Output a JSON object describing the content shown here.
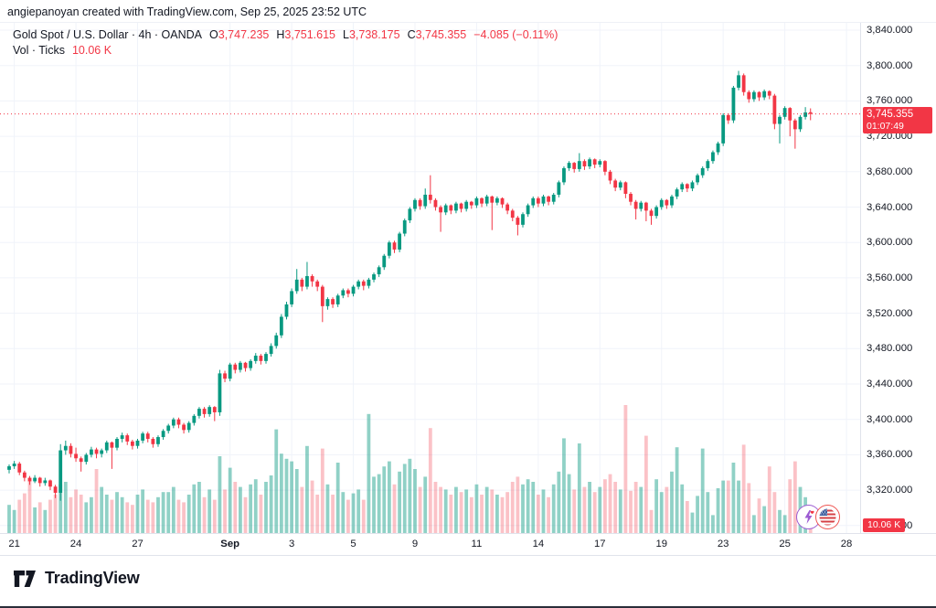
{
  "attribution": "angiepanoyan created with TradingView.com, Sep 25, 2025 23:52 UTC",
  "legend": {
    "title": "Gold Spot / U.S. Dollar · 4h · OANDA",
    "open_label": "O",
    "open": "3,747.235",
    "high_label": "H",
    "high": "3,751.615",
    "low_label": "L",
    "low": "3,738.175",
    "close_label": "C",
    "close": "3,745.355",
    "change": "−4.085 (−0.11%)",
    "volume_label": "Vol · Ticks",
    "volume_value": "10.06 K"
  },
  "price_badge": {
    "price": "3,745.355",
    "countdown": "01:07:49"
  },
  "volume_badge": "10.06 K",
  "footer": {
    "brand": "TradingView"
  },
  "icons": {
    "left": "lightning-event-icon",
    "right": "us-flag-event-icon"
  },
  "colors": {
    "up": "#089981",
    "down": "#f23645",
    "vol_up": "rgba(8,153,129,0.45)",
    "vol_down": "rgba(242,54,69,0.30)",
    "grid": "#f0f3fa",
    "axis_border": "#e0e3eb",
    "text": "#131722",
    "badge_bg": "#f23645",
    "last_price_line": "#f23645"
  },
  "chart_data": {
    "type": "candlestick+volume",
    "symbol": "Gold Spot / U.S. Dollar (XAU/USD)",
    "exchange": "OANDA",
    "interval": "4h",
    "last_close": 3745.355,
    "y_ticks": [
      {
        "value": 3840,
        "text": "3,840.000"
      },
      {
        "value": 3800,
        "text": "3,800.000"
      },
      {
        "value": 3760,
        "text": "3,760.000"
      },
      {
        "value": 3720,
        "text": "3,720.000"
      },
      {
        "value": 3680,
        "text": "3,680.000"
      },
      {
        "value": 3640,
        "text": "3,640.000"
      },
      {
        "value": 3600,
        "text": "3,600.000"
      },
      {
        "value": 3560,
        "text": "3,560.000"
      },
      {
        "value": 3520,
        "text": "3,520.000"
      },
      {
        "value": 3480,
        "text": "3,480.000"
      },
      {
        "value": 3440,
        "text": "3,440.000"
      },
      {
        "value": 3400,
        "text": "3,400.000"
      },
      {
        "value": 3360,
        "text": "3,360.000"
      },
      {
        "value": 3320,
        "text": "3,320.000"
      },
      {
        "value": 3280,
        "text": "3,280.000"
      }
    ],
    "x_ticks": [
      {
        "label": "21",
        "i": 1
      },
      {
        "label": "24",
        "i": 13
      },
      {
        "label": "27",
        "i": 25
      },
      {
        "label": "Sep",
        "i": 43,
        "bold": true
      },
      {
        "label": "3",
        "i": 55
      },
      {
        "label": "5",
        "i": 67
      },
      {
        "label": "9",
        "i": 79
      },
      {
        "label": "11",
        "i": 91
      },
      {
        "label": "14",
        "i": 103
      },
      {
        "label": "17",
        "i": 115
      },
      {
        "label": "19",
        "i": 127
      },
      {
        "label": "23",
        "i": 139
      },
      {
        "label": "25",
        "i": 151
      },
      {
        "label": "28",
        "i": 163
      }
    ],
    "candles_format": [
      "open",
      "high",
      "low",
      "close",
      "volume_k"
    ],
    "candles": [
      [
        3343,
        3349,
        3339,
        3347,
        22
      ],
      [
        3347,
        3353,
        3344,
        3350,
        18
      ],
      [
        3350,
        3352,
        3337,
        3340,
        26
      ],
      [
        3340,
        3342,
        3330,
        3334,
        31
      ],
      [
        3334,
        3336,
        3326,
        3330,
        43
      ],
      [
        3330,
        3337,
        3328,
        3334,
        20
      ],
      [
        3334,
        3335,
        3324,
        3328,
        24
      ],
      [
        3328,
        3334,
        3325,
        3331,
        18
      ],
      [
        3331,
        3332,
        3320,
        3324,
        26
      ],
      [
        3324,
        3326,
        3311,
        3317,
        30
      ],
      [
        3317,
        3372,
        3308,
        3365,
        38
      ],
      [
        3365,
        3376,
        3360,
        3370,
        40
      ],
      [
        3370,
        3373,
        3357,
        3361,
        28
      ],
      [
        3361,
        3368,
        3352,
        3356,
        34
      ],
      [
        3356,
        3358,
        3341,
        3352,
        30
      ],
      [
        3352,
        3362,
        3349,
        3360,
        24
      ],
      [
        3360,
        3369,
        3357,
        3366,
        28
      ],
      [
        3366,
        3368,
        3356,
        3361,
        50
      ],
      [
        3361,
        3367,
        3357,
        3365,
        36
      ],
      [
        3365,
        3376,
        3362,
        3374,
        30
      ],
      [
        3374,
        3375,
        3344,
        3368,
        26
      ],
      [
        3368,
        3380,
        3365,
        3378,
        32
      ],
      [
        3378,
        3385,
        3374,
        3382,
        28
      ],
      [
        3382,
        3384,
        3371,
        3375,
        24
      ],
      [
        3375,
        3377,
        3366,
        3370,
        22
      ],
      [
        3370,
        3378,
        3367,
        3376,
        30
      ],
      [
        3376,
        3386,
        3373,
        3384,
        34
      ],
      [
        3384,
        3386,
        3374,
        3378,
        26
      ],
      [
        3378,
        3380,
        3368,
        3372,
        24
      ],
      [
        3372,
        3382,
        3369,
        3380,
        28
      ],
      [
        3380,
        3389,
        3377,
        3387,
        32
      ],
      [
        3387,
        3395,
        3384,
        3393,
        32
      ],
      [
        3393,
        3402,
        3390,
        3400,
        36
      ],
      [
        3400,
        3402,
        3390,
        3394,
        26
      ],
      [
        3394,
        3396,
        3384,
        3388,
        24
      ],
      [
        3388,
        3398,
        3385,
        3396,
        30
      ],
      [
        3396,
        3406,
        3393,
        3404,
        38
      ],
      [
        3404,
        3414,
        3401,
        3412,
        40
      ],
      [
        3412,
        3414,
        3402,
        3406,
        28
      ],
      [
        3406,
        3416,
        3403,
        3414,
        34
      ],
      [
        3414,
        3415,
        3398,
        3408,
        26
      ],
      [
        3408,
        3456,
        3404,
        3452,
        60
      ],
      [
        3452,
        3455,
        3442,
        3446,
        34
      ],
      [
        3446,
        3464,
        3443,
        3462,
        51
      ],
      [
        3462,
        3464,
        3452,
        3456,
        40
      ],
      [
        3456,
        3466,
        3453,
        3464,
        36
      ],
      [
        3464,
        3465,
        3454,
        3458,
        28
      ],
      [
        3458,
        3468,
        3455,
        3466,
        38
      ],
      [
        3466,
        3475,
        3463,
        3472,
        42
      ],
      [
        3472,
        3474,
        3462,
        3466,
        30
      ],
      [
        3466,
        3476,
        3463,
        3474,
        40
      ],
      [
        3474,
        3486,
        3471,
        3483,
        45
      ],
      [
        3483,
        3498,
        3480,
        3495,
        81
      ],
      [
        3495,
        3519,
        3492,
        3516,
        62
      ],
      [
        3516,
        3533,
        3513,
        3530,
        58
      ],
      [
        3530,
        3548,
        3527,
        3545,
        56
      ],
      [
        3545,
        3570,
        3542,
        3558,
        50
      ],
      [
        3558,
        3560,
        3545,
        3550,
        36
      ],
      [
        3550,
        3578,
        3547,
        3562,
        68
      ],
      [
        3562,
        3564,
        3550,
        3556,
        41
      ],
      [
        3556,
        3558,
        3545,
        3550,
        30
      ],
      [
        3550,
        3552,
        3510,
        3528,
        66
      ],
      [
        3528,
        3538,
        3524,
        3536,
        38
      ],
      [
        3536,
        3538,
        3526,
        3530,
        30
      ],
      [
        3530,
        3542,
        3527,
        3540,
        55
      ],
      [
        3540,
        3548,
        3537,
        3546,
        32
      ],
      [
        3546,
        3548,
        3538,
        3542,
        26
      ],
      [
        3542,
        3552,
        3539,
        3550,
        31
      ],
      [
        3550,
        3558,
        3547,
        3556,
        34
      ],
      [
        3556,
        3558,
        3546,
        3551,
        26
      ],
      [
        3551,
        3560,
        3548,
        3558,
        93
      ],
      [
        3558,
        3566,
        3555,
        3564,
        44
      ],
      [
        3564,
        3574,
        3561,
        3572,
        46
      ],
      [
        3572,
        3587,
        3569,
        3585,
        52
      ],
      [
        3585,
        3602,
        3582,
        3600,
        56
      ],
      [
        3600,
        3602,
        3588,
        3592,
        38
      ],
      [
        3592,
        3612,
        3589,
        3610,
        48
      ],
      [
        3610,
        3627,
        3607,
        3625,
        54
      ],
      [
        3625,
        3640,
        3622,
        3638,
        58
      ],
      [
        3638,
        3650,
        3635,
        3648,
        50
      ],
      [
        3648,
        3650,
        3637,
        3641,
        36
      ],
      [
        3641,
        3661,
        3638,
        3654,
        44
      ],
      [
        3654,
        3676,
        3644,
        3648,
        82
      ],
      [
        3648,
        3650,
        3636,
        3640,
        40
      ],
      [
        3640,
        3642,
        3612,
        3634,
        36
      ],
      [
        3634,
        3644,
        3631,
        3642,
        34
      ],
      [
        3642,
        3643,
        3632,
        3636,
        30
      ],
      [
        3636,
        3646,
        3633,
        3644,
        36
      ],
      [
        3644,
        3645,
        3634,
        3638,
        32
      ],
      [
        3638,
        3648,
        3635,
        3646,
        34
      ],
      [
        3646,
        3647,
        3638,
        3642,
        28
      ],
      [
        3642,
        3652,
        3639,
        3650,
        38
      ],
      [
        3650,
        3651,
        3640,
        3644,
        30
      ],
      [
        3644,
        3654,
        3641,
        3652,
        36
      ],
      [
        3652,
        3653,
        3614,
        3645,
        34
      ],
      [
        3645,
        3652,
        3642,
        3650,
        30
      ],
      [
        3650,
        3651,
        3639,
        3643,
        28
      ],
      [
        3643,
        3645,
        3632,
        3636,
        32
      ],
      [
        3636,
        3638,
        3624,
        3628,
        40
      ],
      [
        3628,
        3630,
        3608,
        3620,
        44
      ],
      [
        3620,
        3634,
        3617,
        3632,
        38
      ],
      [
        3632,
        3644,
        3629,
        3642,
        42
      ],
      [
        3642,
        3652,
        3639,
        3650,
        40
      ],
      [
        3650,
        3652,
        3640,
        3644,
        30
      ],
      [
        3644,
        3654,
        3641,
        3652,
        34
      ],
      [
        3652,
        3653,
        3642,
        3646,
        28
      ],
      [
        3646,
        3656,
        3643,
        3654,
        38
      ],
      [
        3654,
        3670,
        3651,
        3668,
        48
      ],
      [
        3668,
        3686,
        3665,
        3684,
        74
      ],
      [
        3684,
        3692,
        3681,
        3690,
        46
      ],
      [
        3690,
        3691,
        3679,
        3683,
        34
      ],
      [
        3683,
        3701,
        3680,
        3692,
        70
      ],
      [
        3692,
        3694,
        3682,
        3686,
        36
      ],
      [
        3686,
        3696,
        3683,
        3694,
        40
      ],
      [
        3694,
        3695,
        3684,
        3688,
        32
      ],
      [
        3688,
        3694,
        3685,
        3692,
        36
      ],
      [
        3692,
        3693,
        3676,
        3680,
        42
      ],
      [
        3680,
        3682,
        3666,
        3670,
        46
      ],
      [
        3670,
        3672,
        3658,
        3662,
        40
      ],
      [
        3662,
        3670,
        3659,
        3668,
        34
      ],
      [
        3668,
        3669,
        3650,
        3655,
        100
      ],
      [
        3655,
        3657,
        3642,
        3646,
        33
      ],
      [
        3646,
        3648,
        3626,
        3638,
        40
      ],
      [
        3638,
        3647,
        3635,
        3645,
        36
      ],
      [
        3645,
        3646,
        3624,
        3636,
        76
      ],
      [
        3636,
        3638,
        3620,
        3630,
        18
      ],
      [
        3630,
        3642,
        3627,
        3640,
        42
      ],
      [
        3640,
        3650,
        3637,
        3648,
        32
      ],
      [
        3648,
        3649,
        3638,
        3642,
        36
      ],
      [
        3642,
        3654,
        3639,
        3652,
        48
      ],
      [
        3652,
        3662,
        3649,
        3660,
        67
      ],
      [
        3660,
        3668,
        3657,
        3666,
        38
      ],
      [
        3666,
        3667,
        3657,
        3661,
        25
      ],
      [
        3661,
        3670,
        3658,
        3668,
        16
      ],
      [
        3668,
        3678,
        3665,
        3676,
        29
      ],
      [
        3676,
        3686,
        3673,
        3684,
        66
      ],
      [
        3684,
        3694,
        3681,
        3692,
        32
      ],
      [
        3692,
        3704,
        3689,
        3702,
        14
      ],
      [
        3702,
        3714,
        3699,
        3712,
        35
      ],
      [
        3712,
        3746,
        3709,
        3744,
        41
      ],
      [
        3744,
        3746,
        3734,
        3738,
        41
      ],
      [
        3738,
        3777,
        3735,
        3775,
        55
      ],
      [
        3775,
        3794,
        3772,
        3789,
        41
      ],
      [
        3789,
        3791,
        3766,
        3770,
        69
      ],
      [
        3770,
        3772,
        3758,
        3762,
        39
      ],
      [
        3762,
        3772,
        3759,
        3770,
        14
      ],
      [
        3770,
        3771,
        3760,
        3764,
        27
      ],
      [
        3764,
        3773,
        3761,
        3771,
        21
      ],
      [
        3771,
        3772,
        3762,
        3766,
        52
      ],
      [
        3766,
        3768,
        3728,
        3734,
        32
      ],
      [
        3734,
        3744,
        3712,
        3742,
        18
      ],
      [
        3742,
        3754,
        3739,
        3752,
        14
      ],
      [
        3752,
        3753,
        3720,
        3738,
        42
      ],
      [
        3738,
        3740,
        3706,
        3728,
        56
      ],
      [
        3728,
        3744,
        3725,
        3742,
        36
      ],
      [
        3742,
        3753,
        3739,
        3747,
        28
      ],
      [
        3747.235,
        3751.615,
        3738.175,
        3745.355,
        10.06
      ]
    ]
  }
}
